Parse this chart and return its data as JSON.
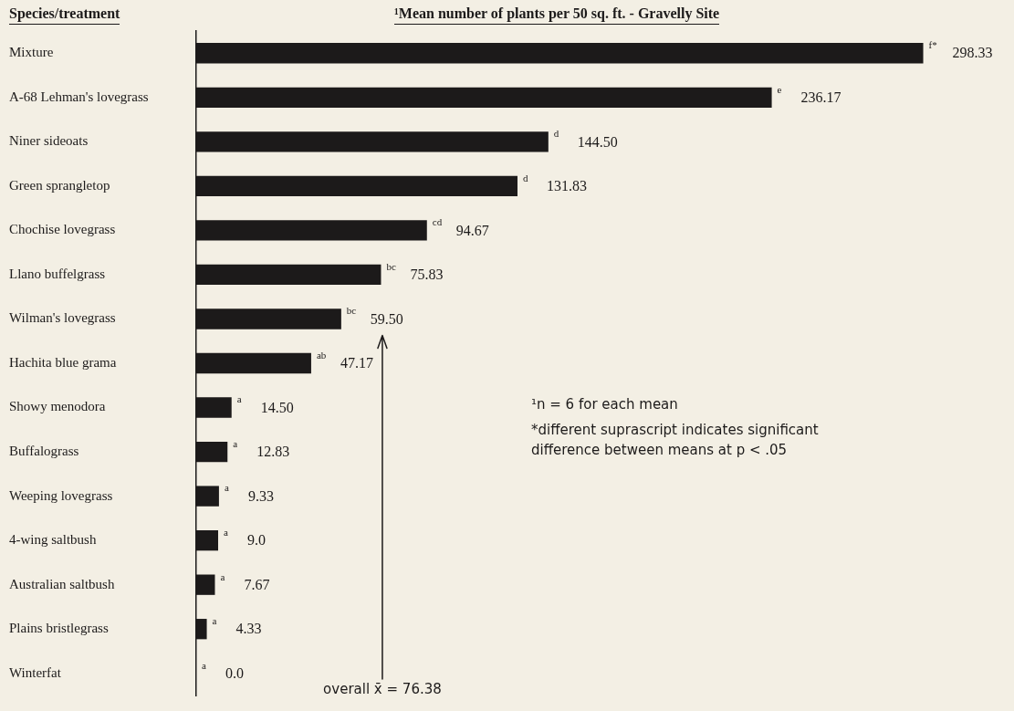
{
  "chart_data": {
    "type": "bar",
    "orientation": "horizontal",
    "title": "¹Mean number of plants per 50 sq. ft. - Gravelly Site",
    "ylabel": "Species/treatment",
    "categories": [
      "Mixture",
      "A-68 Lehman's lovegrass",
      "Niner sideoats",
      "Green sprangletop",
      "Chochise lovegrass",
      "Llano buffelgrass",
      "Wilman's lovegrass",
      "Hachita blue grama",
      "Showy menodora",
      "Buffalograss",
      "Weeping lovegrass",
      "4-wing saltbush",
      "Australian saltbush",
      "Plains bristlegrass",
      "Winterfat"
    ],
    "values": [
      298.33,
      236.17,
      144.5,
      131.83,
      94.67,
      75.83,
      59.5,
      47.17,
      14.5,
      12.83,
      9.33,
      9.0,
      7.67,
      4.33,
      0.0
    ],
    "value_labels": [
      "298.33",
      "236.17",
      "144.50",
      "131.83",
      "94.67",
      "75.83",
      "59.50",
      "47.17",
      "14.50",
      "12.83",
      "9.33",
      "9.0",
      "7.67",
      "4.33",
      "0.0"
    ],
    "color": "#1c1a1a",
    "tick_labels": "y",
    "grid": false,
    "legend": false,
    "ref_lines": [
      {
        "axis": "x",
        "value": 76.38,
        "label": "overall x̄ = 76.38",
        "color": "#1c1a1a"
      }
    ],
    "annotations": [
      {
        "text": "f*",
        "x": 298.33,
        "y": "Mixture"
      },
      {
        "text": "e",
        "x": 236.17,
        "y": "A-68 Lehman's lovegrass"
      },
      {
        "text": "d",
        "x": 144.5,
        "y": "Niner sideoats"
      },
      {
        "text": "d",
        "x": 131.83,
        "y": "Green sprangletop"
      },
      {
        "text": "cd",
        "x": 94.67,
        "y": "Chochise lovegrass"
      },
      {
        "text": "bc",
        "x": 75.83,
        "y": "Llano buffelgrass"
      },
      {
        "text": "bc",
        "x": 59.5,
        "y": "Wilman's lovegrass"
      },
      {
        "text": "ab",
        "x": 47.17,
        "y": "Hachita blue grama"
      },
      {
        "text": "a",
        "x": 14.5,
        "y": "Showy menodora"
      },
      {
        "text": "a",
        "x": 12.83,
        "y": "Buffalograss"
      },
      {
        "text": "a",
        "x": 9.33,
        "y": "Weeping lovegrass"
      },
      {
        "text": "a",
        "x": 9.0,
        "y": "4-wing saltbush"
      },
      {
        "text": "a",
        "x": 7.67,
        "y": "Australian saltbush"
      },
      {
        "text": "a",
        "x": 4.33,
        "y": "Plains bristlegrass"
      },
      {
        "text": "a",
        "x": 0.0,
        "y": "Winterfat"
      },
      "¹n = 6 for each mean",
      "*different suprascript indicates significant difference between means at p < .05"
    ]
  }
}
